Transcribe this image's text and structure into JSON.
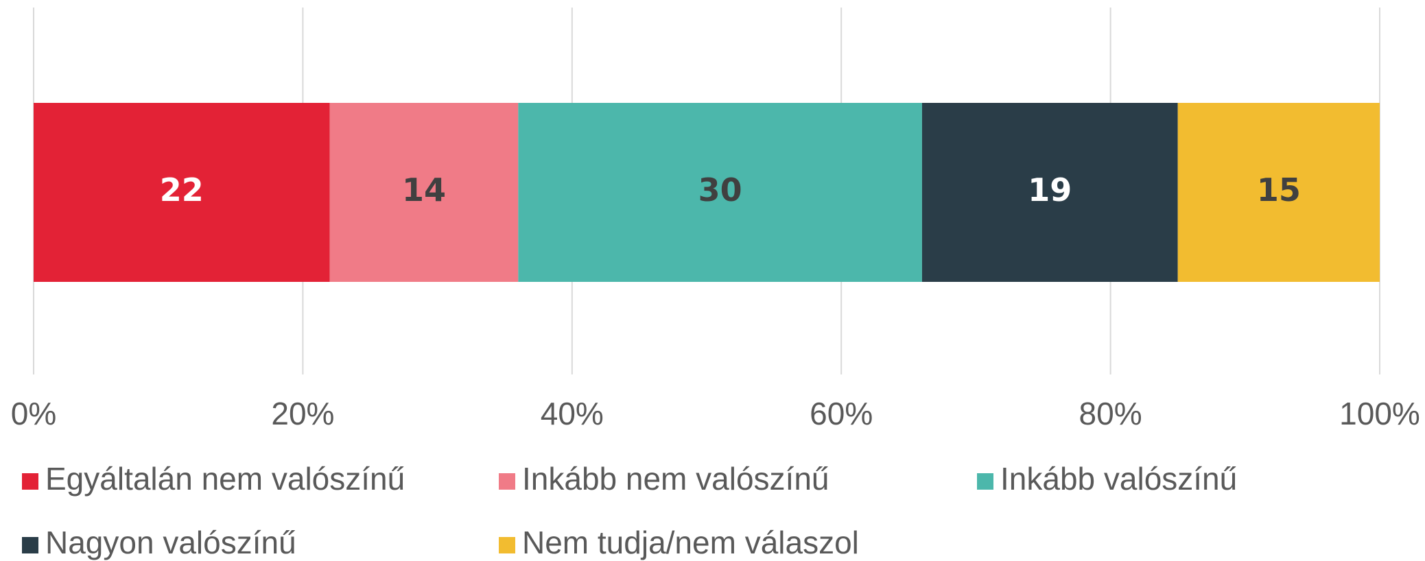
{
  "chart_data": {
    "type": "stacked-bar-horizontal",
    "series": [
      {
        "name": "Egyáltalán nem valószínű",
        "color": "#e32236",
        "label_color": "#ffffff",
        "values": [
          22
        ]
      },
      {
        "name": "Inkább nem valószínű",
        "color": "#f07b87",
        "label_color": "#404040",
        "values": [
          14
        ]
      },
      {
        "name": "Inkább valószínű",
        "color": "#4cb7ab",
        "label_color": "#404040",
        "values": [
          30
        ]
      },
      {
        "name": "Nagyon valószínű",
        "color": "#2a3d48",
        "label_color": "#ffffff",
        "values": [
          19
        ]
      },
      {
        "name": "Nem tudja/nem válaszol",
        "color": "#f2bc30",
        "label_color": "#404040",
        "values": [
          15
        ]
      }
    ],
    "xlim": [
      0,
      100
    ],
    "xticks": [
      {
        "value": 0,
        "label": "0%"
      },
      {
        "value": 20,
        "label": "20%"
      },
      {
        "value": 40,
        "label": "40%"
      },
      {
        "value": 60,
        "label": "60%"
      },
      {
        "value": 80,
        "label": "80%"
      },
      {
        "value": 100,
        "label": "100%"
      }
    ],
    "grid": true
  }
}
